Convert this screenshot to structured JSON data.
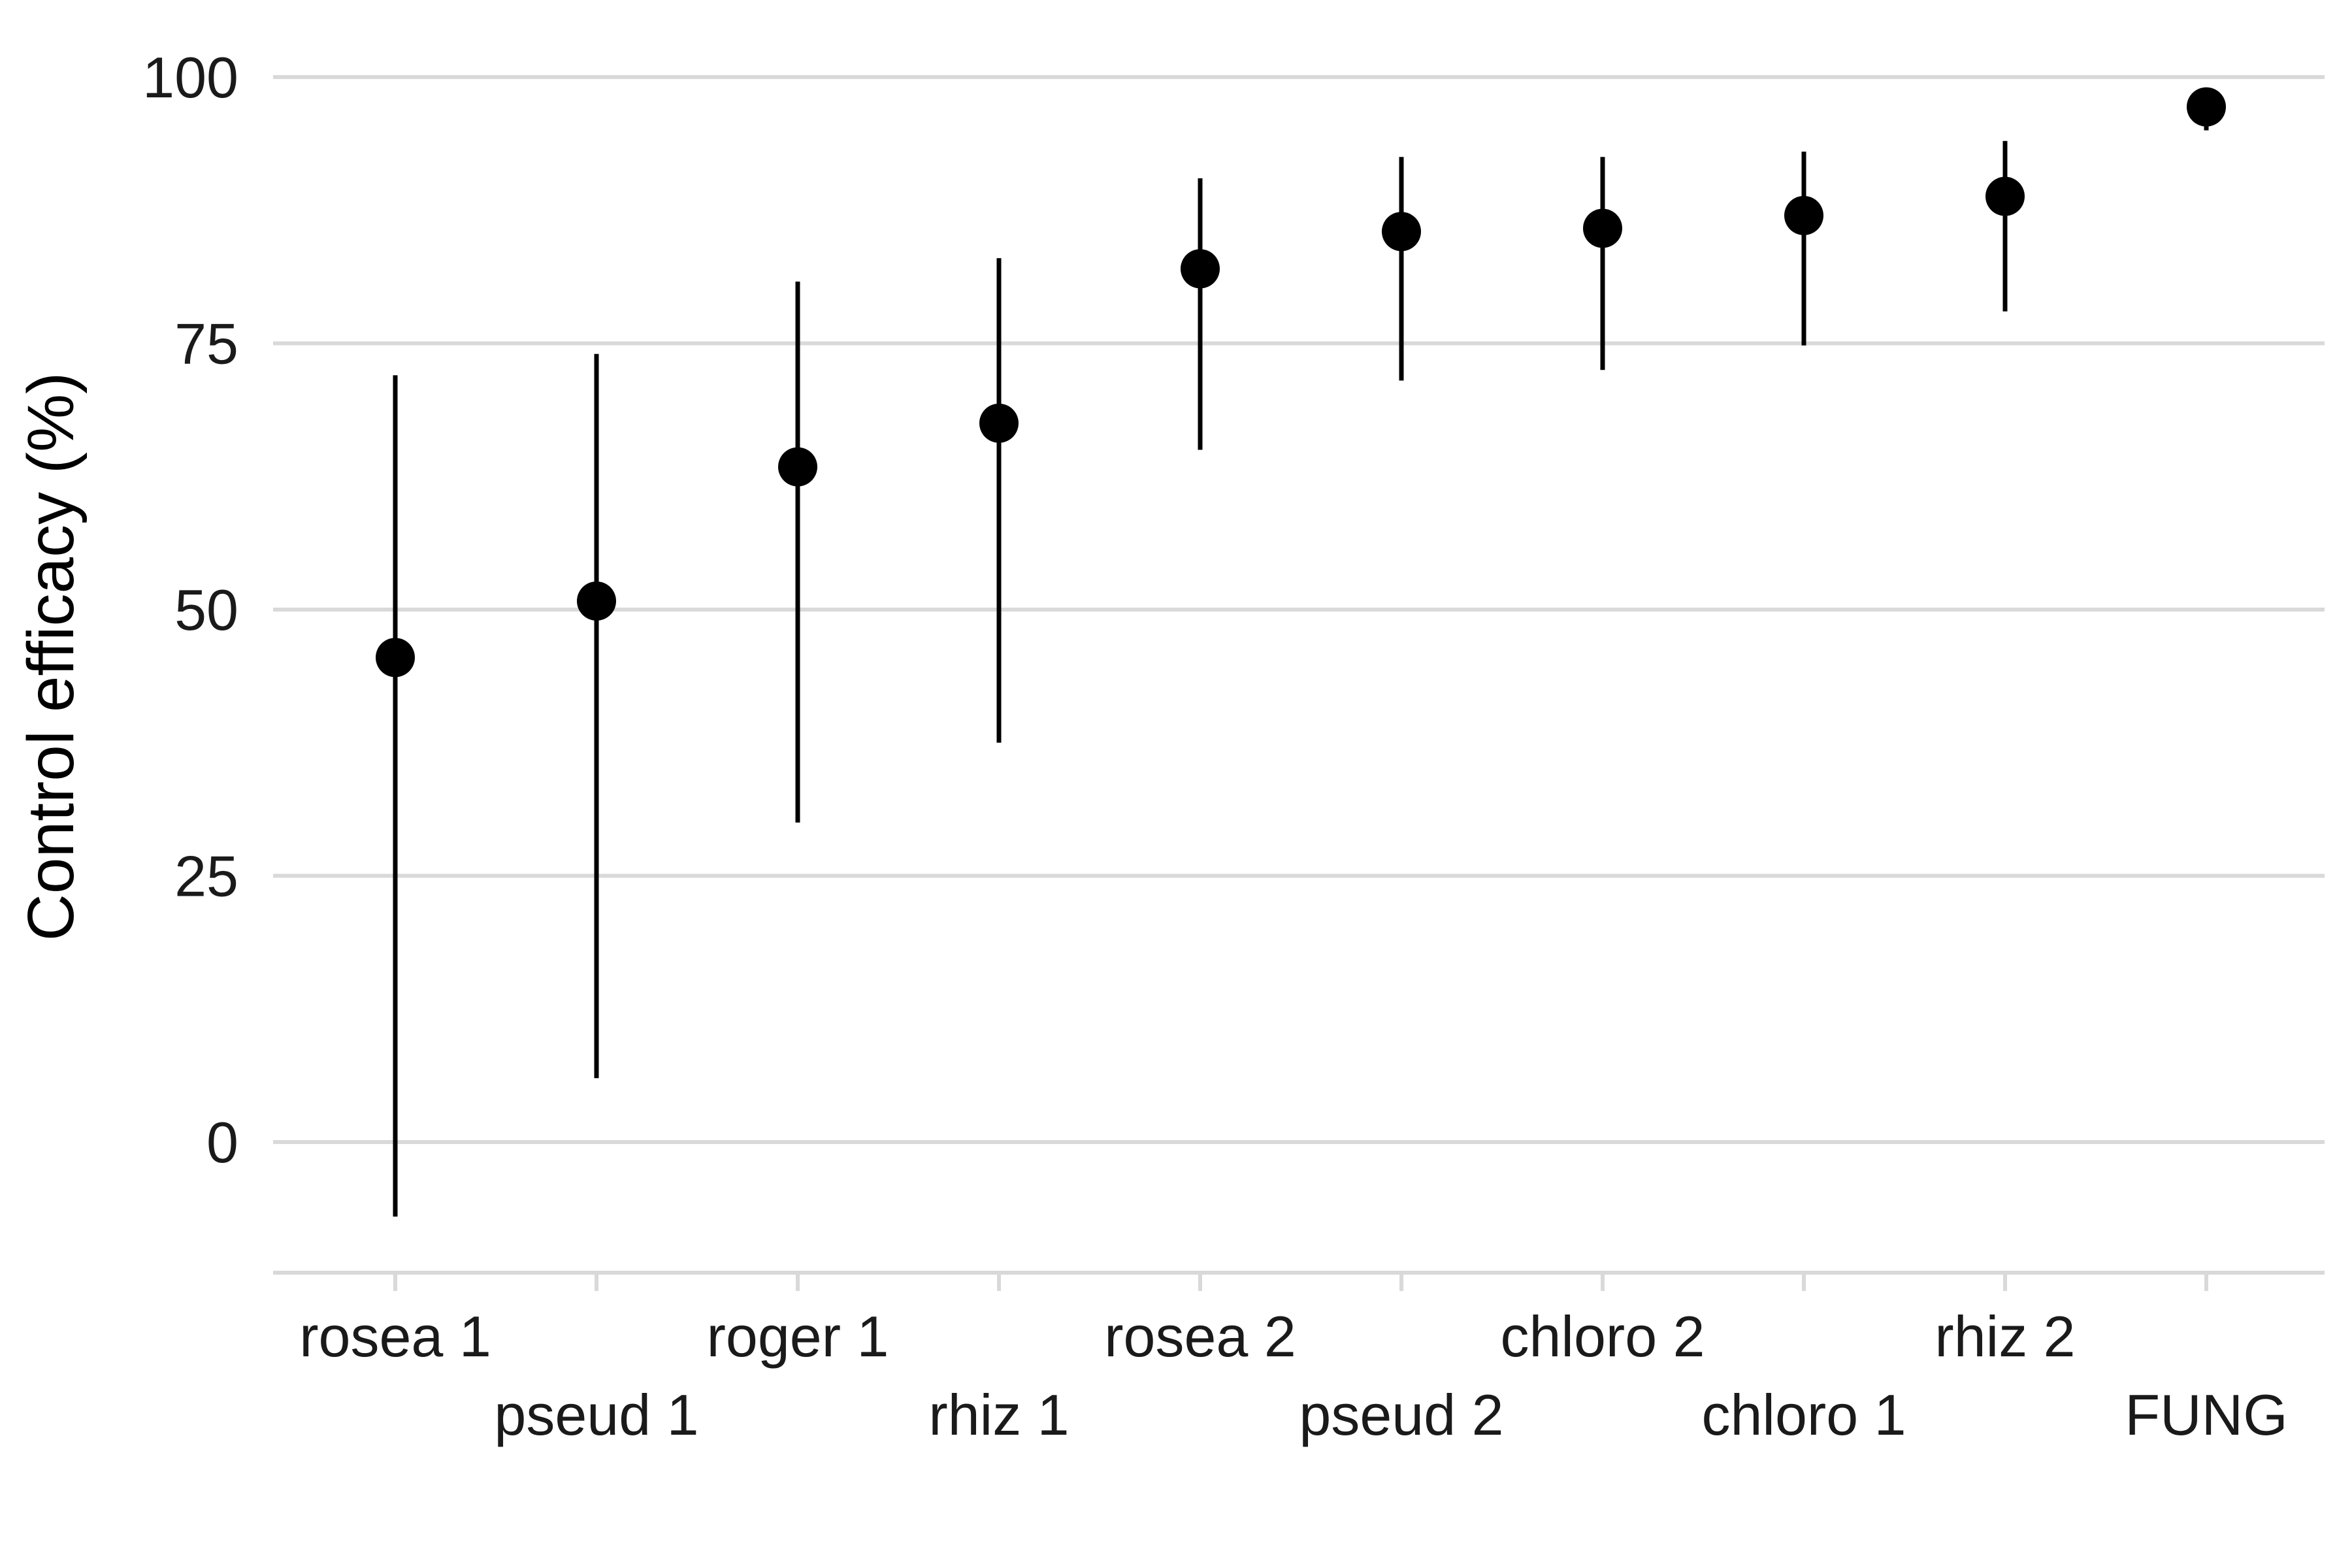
{
  "chart_data": {
    "type": "scatter",
    "ylabel": "Control efficacy (%)",
    "xlabel": "",
    "ylim": [
      -12,
      100
    ],
    "yticks": [
      0,
      25,
      50,
      75,
      100
    ],
    "grid": "horizontal",
    "categories": [
      "rosea 1",
      "pseud 1",
      "roger 1",
      "rhiz 1",
      "rosea 2",
      "pseud 2",
      "chloro 2",
      "chloro 1",
      "rhiz 2",
      "FUNG"
    ],
    "series": [
      {
        "values": [
          45.5,
          50.8,
          63.4,
          67.5,
          82.0,
          85.5,
          85.8,
          87.0,
          88.8,
          97.2
        ],
        "lower": [
          -7.0,
          6.0,
          30.0,
          37.5,
          65.0,
          71.5,
          72.5,
          74.8,
          78.0,
          95.0
        ],
        "upper": [
          72.0,
          74.0,
          80.8,
          83.0,
          90.5,
          92.5,
          92.5,
          93.0,
          94.0,
          98.5
        ]
      }
    ],
    "point_color": "#000000",
    "grid_color": "#d9d9d9"
  }
}
